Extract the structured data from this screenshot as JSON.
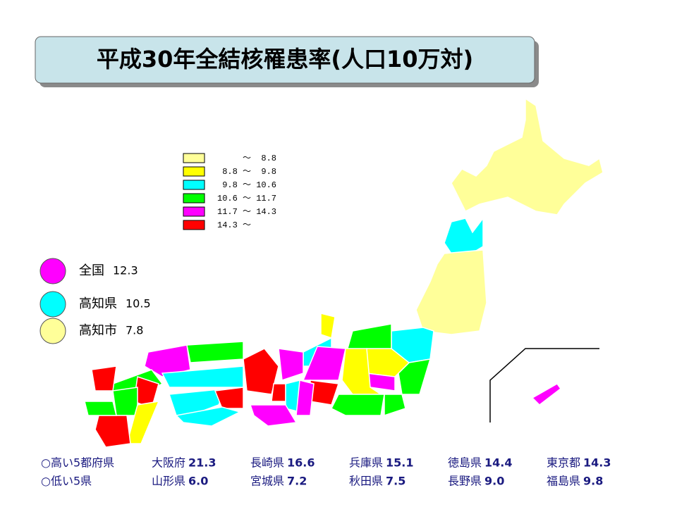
{
  "title": "平成30年全結核罹患率(人口10万対)",
  "legend": [
    {
      "label": "     ～  8.8",
      "color": "#ffff99"
    },
    {
      "label": " 8.8 ～  9.8",
      "color": "#ffff00"
    },
    {
      "label": " 9.8 ～ 10.6",
      "color": "#00ffff"
    },
    {
      "label": "10.6 ～ 11.7",
      "color": "#00ff00"
    },
    {
      "label": "11.7 ～ 14.3",
      "color": "#ff00ff"
    },
    {
      "label": "14.3 ～",
      "color": "#ff0000"
    }
  ],
  "reference": [
    {
      "name": "全国",
      "value": "12.3",
      "color": "#ff00ff"
    },
    {
      "name": "高知県",
      "value": "10.5",
      "color": "#00ffff"
    },
    {
      "name": "高知市",
      "value": "7.8",
      "color": "#ffff99"
    }
  ],
  "rankings": [
    {
      "heading": "○高い5都府県",
      "items": [
        {
          "name": "大阪府",
          "value": "21.3"
        },
        {
          "name": "長崎県",
          "value": "16.6"
        },
        {
          "name": "兵庫県",
          "value": "15.1"
        },
        {
          "name": "徳島県",
          "value": "14.4"
        },
        {
          "name": "東京都",
          "value": "14.3"
        }
      ]
    },
    {
      "heading": "○低い5県",
      "items": [
        {
          "name": "山形県",
          "value": "6.0"
        },
        {
          "name": "宮城県",
          "value": "7.2"
        },
        {
          "name": "秋田県",
          "value": "7.5"
        },
        {
          "name": "長野県",
          "value": "9.0"
        },
        {
          "name": "福島県",
          "value": "9.8"
        }
      ]
    }
  ]
}
